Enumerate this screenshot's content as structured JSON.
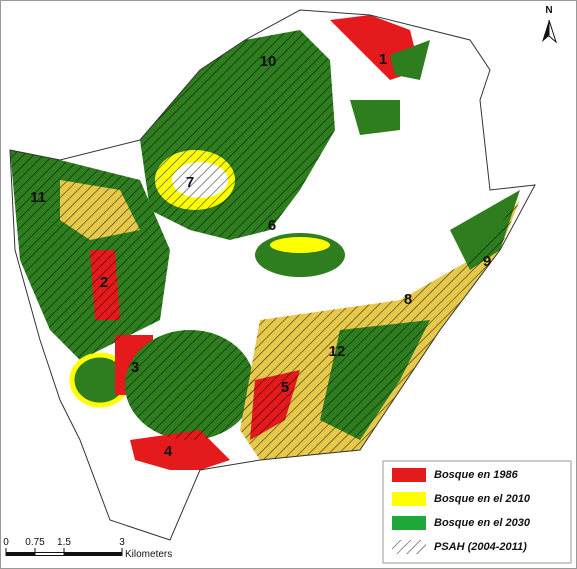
{
  "map": {
    "north": "N",
    "zones": [
      "1",
      "10",
      "7",
      "11",
      "6",
      "9",
      "2",
      "8",
      "12",
      "3",
      "5",
      "4"
    ],
    "legend": [
      {
        "label": "Bosque en 1986",
        "color": "#e41a1c"
      },
      {
        "label": "Bosque en el 2010",
        "color": "#ffff00"
      },
      {
        "label": "Bosque en el 2030",
        "color": "#1fa83a"
      },
      {
        "label": "PSAH (2004-2011)",
        "color": "#000000"
      }
    ],
    "scale": {
      "ticks": [
        0,
        0.75,
        1.5,
        3
      ],
      "unit": "Kilometers"
    }
  }
}
